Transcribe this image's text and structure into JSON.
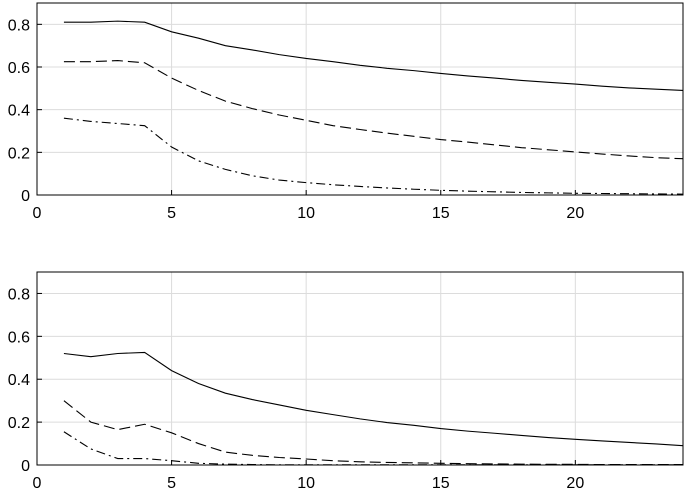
{
  "chart_data": [
    {
      "type": "line",
      "xlim": [
        0,
        24
      ],
      "ylim": [
        0,
        0.9
      ],
      "xticks": [
        0,
        5,
        10,
        15,
        20
      ],
      "yticks": [
        0,
        0.2,
        0.4,
        0.6,
        0.8
      ],
      "xtick_labels": [
        "0",
        "5",
        "10",
        "15",
        "20"
      ],
      "ytick_labels": [
        "0",
        "0.2",
        "0.4",
        "0.6",
        "0.8"
      ],
      "grid": true,
      "x": [
        1,
        2,
        3,
        4,
        5,
        6,
        7,
        8,
        9,
        10,
        11,
        12,
        13,
        14,
        15,
        16,
        17,
        18,
        19,
        20,
        21,
        22,
        23,
        24
      ],
      "series": [
        {
          "style": "solid",
          "values": [
            0.81,
            0.81,
            0.815,
            0.81,
            0.765,
            0.735,
            0.7,
            0.68,
            0.658,
            0.64,
            0.625,
            0.608,
            0.594,
            0.583,
            0.57,
            0.558,
            0.548,
            0.537,
            0.528,
            0.52,
            0.51,
            0.502,
            0.496,
            0.49
          ]
        },
        {
          "style": "dashed",
          "values": [
            0.625,
            0.625,
            0.63,
            0.62,
            0.548,
            0.49,
            0.44,
            0.405,
            0.375,
            0.35,
            0.325,
            0.307,
            0.29,
            0.275,
            0.26,
            0.248,
            0.235,
            0.222,
            0.212,
            0.202,
            0.192,
            0.183,
            0.175,
            0.17
          ]
        },
        {
          "style": "dashdot",
          "values": [
            0.36,
            0.345,
            0.335,
            0.325,
            0.225,
            0.16,
            0.12,
            0.09,
            0.07,
            0.058,
            0.048,
            0.04,
            0.033,
            0.027,
            0.022,
            0.018,
            0.015,
            0.012,
            0.01,
            0.008,
            0.007,
            0.006,
            0.005,
            0.004
          ]
        }
      ]
    },
    {
      "type": "line",
      "xlim": [
        0,
        24
      ],
      "ylim": [
        0,
        0.9
      ],
      "xticks": [
        0,
        5,
        10,
        15,
        20
      ],
      "yticks": [
        0,
        0.2,
        0.4,
        0.6,
        0.8
      ],
      "xtick_labels": [
        "0",
        "5",
        "10",
        "15",
        "20"
      ],
      "ytick_labels": [
        "0",
        "0.2",
        "0.4",
        "0.6",
        "0.8"
      ],
      "grid": true,
      "x": [
        1,
        2,
        3,
        4,
        5,
        6,
        7,
        8,
        9,
        10,
        11,
        12,
        13,
        14,
        15,
        16,
        17,
        18,
        19,
        20,
        21,
        22,
        23,
        24
      ],
      "series": [
        {
          "style": "solid",
          "values": [
            0.52,
            0.505,
            0.52,
            0.525,
            0.44,
            0.38,
            0.335,
            0.305,
            0.28,
            0.255,
            0.235,
            0.215,
            0.198,
            0.185,
            0.17,
            0.158,
            0.148,
            0.138,
            0.128,
            0.12,
            0.112,
            0.105,
            0.098,
            0.09
          ]
        },
        {
          "style": "dashed",
          "values": [
            0.3,
            0.2,
            0.165,
            0.19,
            0.15,
            0.1,
            0.06,
            0.045,
            0.035,
            0.028,
            0.02,
            0.015,
            0.012,
            0.01,
            0.008,
            0.006,
            0.005,
            0.004,
            0.003,
            0.003,
            0.002,
            0.002,
            0.002,
            0.002
          ]
        },
        {
          "style": "dashdot",
          "values": [
            0.155,
            0.075,
            0.03,
            0.03,
            0.02,
            0.008,
            0.004,
            0.002,
            0.001,
            0.001,
            0.001,
            0.001,
            0.001,
            0.001,
            0.001,
            0.001,
            0.001,
            0.001,
            0.001,
            0.001,
            0.001,
            0.001,
            0.001,
            0.001
          ]
        }
      ]
    }
  ]
}
